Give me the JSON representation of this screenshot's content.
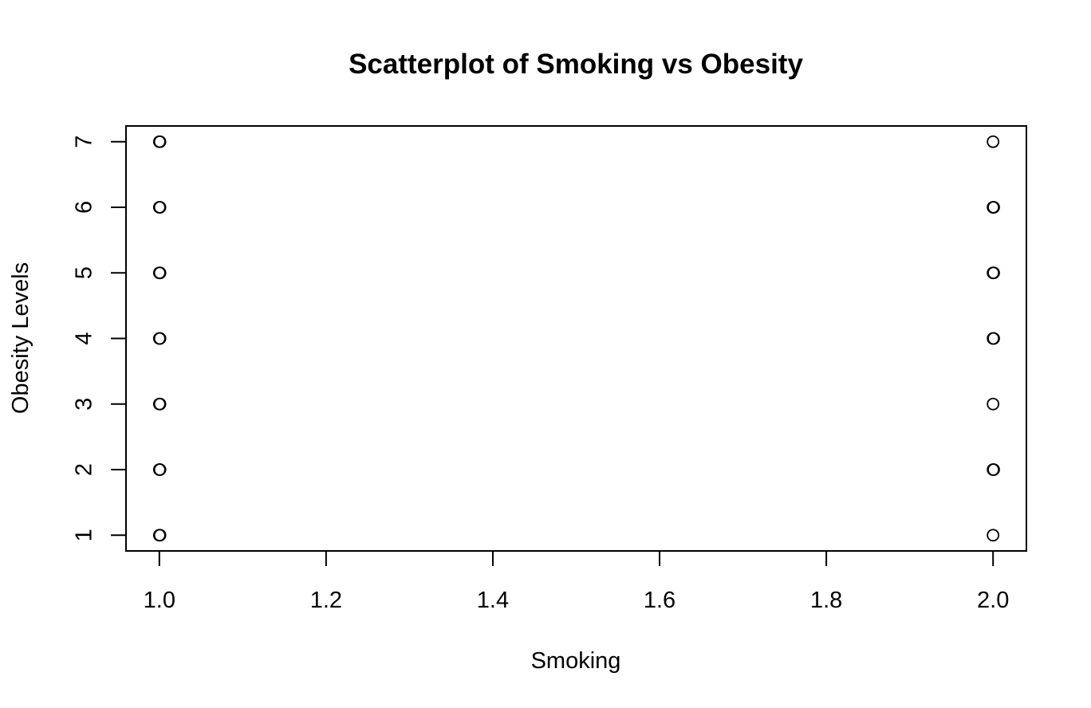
{
  "chart_data": {
    "type": "scatter",
    "title": "Scatterplot of Smoking vs Obesity",
    "xlabel": "Smoking",
    "ylabel": "Obesity Levels",
    "xlim": [
      0.96,
      2.04
    ],
    "ylim": [
      0.76,
      7.24
    ],
    "x_ticks": [
      1.0,
      1.2,
      1.4,
      1.6,
      1.8,
      2.0
    ],
    "x_tick_labels": [
      "1.0",
      "1.2",
      "1.4",
      "1.6",
      "1.8",
      "2.0"
    ],
    "y_ticks": [
      1,
      2,
      3,
      4,
      5,
      6,
      7
    ],
    "y_tick_labels": [
      "1",
      "2",
      "3",
      "4",
      "5",
      "6",
      "7"
    ],
    "marker": "open-circle",
    "grid": false,
    "legend": false,
    "colors": {
      "ink": "#000000",
      "background": "#ffffff"
    },
    "points": [
      {
        "x": 1,
        "y": 1
      },
      {
        "x": 1,
        "y": 1
      },
      {
        "x": 1,
        "y": 2
      },
      {
        "x": 1,
        "y": 2
      },
      {
        "x": 1,
        "y": 3
      },
      {
        "x": 1,
        "y": 3
      },
      {
        "x": 1,
        "y": 4
      },
      {
        "x": 1,
        "y": 4
      },
      {
        "x": 1,
        "y": 5
      },
      {
        "x": 1,
        "y": 5
      },
      {
        "x": 1,
        "y": 6
      },
      {
        "x": 1,
        "y": 6
      },
      {
        "x": 1,
        "y": 7
      },
      {
        "x": 1,
        "y": 7
      },
      {
        "x": 2,
        "y": 1
      },
      {
        "x": 2,
        "y": 2
      },
      {
        "x": 2,
        "y": 2
      },
      {
        "x": 2,
        "y": 3
      },
      {
        "x": 2,
        "y": 4
      },
      {
        "x": 2,
        "y": 4
      },
      {
        "x": 2,
        "y": 5
      },
      {
        "x": 2,
        "y": 5
      },
      {
        "x": 2,
        "y": 6
      },
      {
        "x": 2,
        "y": 6
      },
      {
        "x": 2,
        "y": 7
      }
    ]
  }
}
